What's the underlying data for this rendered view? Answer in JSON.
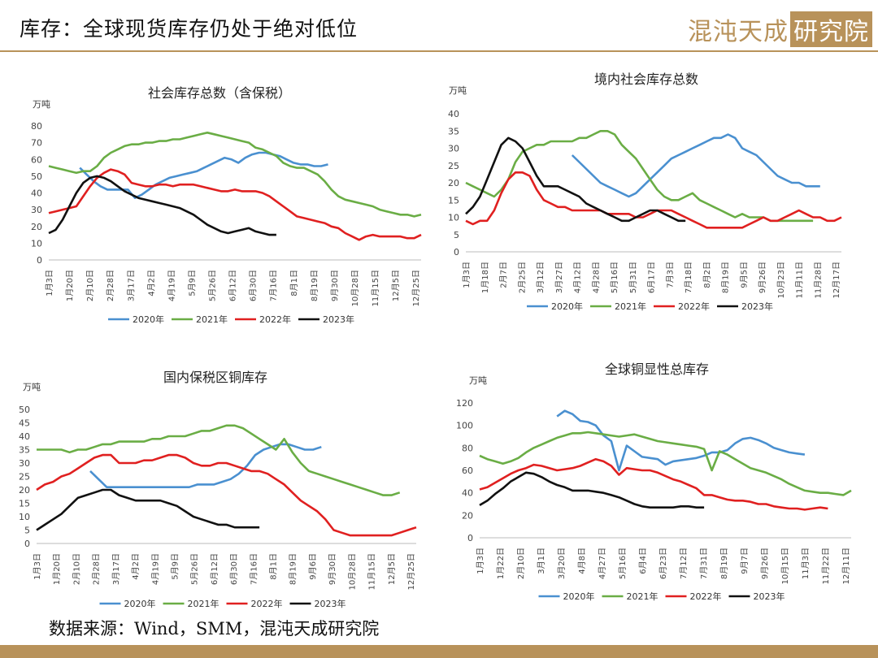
{
  "page": {
    "title": "库存：全球现货库存仍处于绝对低位",
    "logo_main": "混沌天成",
    "logo_box": "研究院",
    "source": "数据来源：Wind，SMM，混沌天成研究院"
  },
  "chart_data": [
    {
      "type": "line",
      "title": "社会库存总数（含保税）",
      "unit": "万吨",
      "ylim": [
        0,
        80
      ],
      "yticks": [
        0,
        10,
        20,
        30,
        40,
        50,
        60,
        70,
        80
      ],
      "x_ticks": [
        "1月3日",
        "1月20日",
        "2月10日",
        "2月28日",
        "3月17日",
        "4月2日",
        "4月19日",
        "5月9日",
        "5月26日",
        "6月12日",
        "6月30日",
        "7月16日",
        "8月1日",
        "8月19日",
        "9月30日",
        "10月28日",
        "11月15日",
        "12月5日",
        "12月25日"
      ],
      "legend_position": "bottom",
      "series": [
        {
          "name": "2020年",
          "color": "#4a90d0",
          "start": 4.5,
          "values": [
            55,
            51,
            47,
            44,
            42,
            42,
            42,
            42,
            37,
            39,
            42,
            45,
            47,
            49,
            50,
            51,
            52,
            53,
            55,
            57,
            59,
            61,
            60,
            58,
            61,
            63,
            64,
            64,
            63,
            62,
            60,
            58,
            57,
            57,
            56,
            56,
            57
          ]
        },
        {
          "name": "2021年",
          "color": "#6aad45",
          "start": 0,
          "values": [
            56,
            55,
            54,
            53,
            52,
            53,
            53,
            56,
            61,
            64,
            66,
            68,
            69,
            69,
            70,
            70,
            71,
            71,
            72,
            72,
            73,
            74,
            75,
            76,
            75,
            74,
            73,
            72,
            71,
            70,
            67,
            66,
            64,
            62,
            58,
            56,
            55,
            55,
            53,
            51,
            47,
            42,
            38,
            36,
            35,
            34,
            33,
            32,
            30,
            29,
            28,
            27,
            27,
            26,
            27
          ]
        },
        {
          "name": "2022年",
          "color": "#e02020",
          "start": 0,
          "values": [
            28,
            29,
            30,
            31,
            32,
            38,
            44,
            49,
            52,
            54,
            53,
            51,
            46,
            45,
            44,
            44,
            45,
            45,
            44,
            45,
            45,
            45,
            44,
            43,
            42,
            41,
            41,
            42,
            41,
            41,
            41,
            40,
            38,
            35,
            32,
            29,
            26,
            25,
            24,
            23,
            22,
            20,
            19,
            16,
            14,
            12,
            14,
            15,
            14,
            14,
            14,
            14,
            13,
            13,
            15
          ]
        },
        {
          "name": "2023年",
          "color": "#111111",
          "start": 0,
          "values": [
            16,
            18,
            24,
            32,
            40,
            46,
            49,
            50,
            49,
            47,
            44,
            41,
            39,
            37,
            36,
            35,
            34,
            33,
            32,
            31,
            29,
            27,
            24,
            21,
            19,
            17,
            16,
            17,
            18,
            19,
            17,
            16,
            15,
            15
          ]
        }
      ]
    },
    {
      "type": "line",
      "title": "境内社会库存总数",
      "unit": "万吨",
      "ylim": [
        0,
        40
      ],
      "yticks": [
        0,
        5,
        10,
        15,
        20,
        25,
        30,
        35,
        40
      ],
      "x_ticks": [
        "1月3日",
        "1月18日",
        "2月7日",
        "2月25日",
        "3月12日",
        "3月27日",
        "4月12日",
        "4月28日",
        "5月16日",
        "5月31日",
        "6月17日",
        "7月3日",
        "7月18日",
        "8月2日",
        "8月19日",
        "9月5日",
        "9月26日",
        "10月23日",
        "11月11日",
        "11月28日",
        "12月17日"
      ],
      "legend_position": "bottom",
      "series": [
        {
          "name": "2020年",
          "color": "#4a90d0",
          "start": 15,
          "values": [
            28,
            26,
            24,
            22,
            20,
            19,
            18,
            17,
            16,
            17,
            19,
            21,
            23,
            25,
            27,
            28,
            29,
            30,
            31,
            32,
            33,
            33,
            34,
            33,
            30,
            29,
            28,
            26,
            24,
            22,
            21,
            20,
            20,
            19,
            19,
            19
          ]
        },
        {
          "name": "2021年",
          "color": "#6aad45",
          "start": 0,
          "values": [
            20,
            19,
            18,
            17,
            16,
            18,
            21,
            26,
            29,
            30,
            31,
            31,
            32,
            32,
            32,
            32,
            33,
            33,
            34,
            35,
            35,
            34,
            31,
            29,
            27,
            24,
            21,
            18,
            16,
            15,
            15,
            16,
            17,
            15,
            14,
            13,
            12,
            11,
            10,
            11,
            10,
            10,
            10,
            9,
            9,
            9,
            9,
            9,
            9,
            9
          ]
        },
        {
          "name": "2022年",
          "color": "#e02020",
          "start": 0,
          "values": [
            9,
            8,
            9,
            9,
            12,
            17,
            21,
            23,
            23,
            22,
            18,
            15,
            14,
            13,
            13,
            12,
            12,
            12,
            12,
            12,
            11,
            11,
            11,
            11,
            10,
            10,
            11,
            12,
            12,
            12,
            11,
            10,
            9,
            8,
            7,
            7,
            7,
            7,
            7,
            7,
            8,
            9,
            10,
            9,
            9,
            10,
            11,
            12,
            11,
            10,
            10,
            9,
            9,
            10
          ]
        },
        {
          "name": "2023年",
          "color": "#111111",
          "start": 0,
          "values": [
            11,
            13,
            16,
            21,
            26,
            31,
            33,
            32,
            30,
            26,
            22,
            19,
            19,
            19,
            18,
            17,
            16,
            14,
            13,
            12,
            11,
            10,
            9,
            9,
            10,
            11,
            12,
            12,
            11,
            10,
            9,
            9
          ]
        }
      ]
    },
    {
      "type": "line",
      "title": "国内保税区铜库存",
      "unit": "万吨",
      "ylim": [
        0,
        50
      ],
      "yticks": [
        0,
        5,
        10,
        15,
        20,
        25,
        30,
        35,
        40,
        45,
        50
      ],
      "x_ticks": [
        "1月3日",
        "1月20日",
        "2月10日",
        "2月28日",
        "3月17日",
        "4月2日",
        "4月19日",
        "5月9日",
        "5月26日",
        "6月12日",
        "6月30日",
        "7月16日",
        "8月1日",
        "8月19日",
        "9月6日",
        "9月30日",
        "10月28日",
        "11月15日",
        "12月5日",
        "12月25日"
      ],
      "legend_position": "bottom",
      "series": [
        {
          "name": "2020年",
          "color": "#4a90d0",
          "start": 6.5,
          "values": [
            27,
            24,
            21,
            21,
            21,
            21,
            21,
            21,
            21,
            21,
            21,
            21,
            21,
            22,
            22,
            22,
            23,
            24,
            26,
            29,
            33,
            35,
            36,
            37,
            37,
            36,
            35,
            35,
            36
          ]
        },
        {
          "name": "2021年",
          "color": "#6aad45",
          "start": 0,
          "values": [
            35,
            35,
            35,
            35,
            34,
            35,
            35,
            36,
            37,
            37,
            38,
            38,
            38,
            38,
            39,
            39,
            40,
            40,
            40,
            41,
            42,
            42,
            43,
            44,
            44,
            43,
            41,
            39,
            37,
            35,
            39,
            34,
            30,
            27,
            26,
            25,
            24,
            23,
            22,
            21,
            20,
            19,
            18,
            18,
            19
          ]
        },
        {
          "name": "2022年",
          "color": "#e02020",
          "start": 0,
          "values": [
            20,
            22,
            23,
            25,
            26,
            28,
            30,
            32,
            33,
            33,
            30,
            30,
            30,
            31,
            31,
            32,
            33,
            33,
            32,
            30,
            29,
            29,
            30,
            30,
            29,
            28,
            27,
            27,
            26,
            24,
            22,
            19,
            16,
            14,
            12,
            9,
            5,
            4,
            3,
            3,
            3,
            3,
            3,
            3,
            4,
            5,
            6
          ]
        },
        {
          "name": "2023年",
          "color": "#111111",
          "start": 0,
          "values": [
            5,
            7,
            9,
            11,
            14,
            17,
            18,
            19,
            20,
            20,
            18,
            17,
            16,
            16,
            16,
            16,
            15,
            14,
            12,
            10,
            9,
            8,
            7,
            7,
            6,
            6,
            6,
            6
          ]
        }
      ]
    },
    {
      "type": "line",
      "title": "全球铜显性总库存",
      "unit": "万吨",
      "ylim": [
        0,
        120
      ],
      "yticks": [
        0,
        20,
        40,
        60,
        80,
        100,
        120
      ],
      "x_ticks": [
        "1月3日",
        "1月22日",
        "2月10日",
        "3月1日",
        "3月20日",
        "4月8日",
        "4月27日",
        "5月16日",
        "6月4日",
        "6月23日",
        "7月12日",
        "7月31日",
        "8月19日",
        "9月7日",
        "9月26日",
        "10月15日",
        "11月3日",
        "11月22日",
        "12月11日"
      ],
      "legend_position": "bottom",
      "series": [
        {
          "name": "2020年",
          "color": "#4a90d0",
          "start": 10,
          "values": [
            108,
            113,
            110,
            104,
            103,
            100,
            91,
            86,
            60,
            82,
            77,
            72,
            71,
            70,
            65,
            68,
            69,
            70,
            71,
            73,
            76,
            76,
            78,
            84,
            88,
            89,
            87,
            84,
            80,
            78,
            76,
            75,
            74
          ]
        },
        {
          "name": "2021年",
          "color": "#6aad45",
          "start": 0,
          "values": [
            73,
            70,
            68,
            66,
            68,
            71,
            76,
            80,
            83,
            86,
            89,
            91,
            93,
            93,
            94,
            93,
            92,
            91,
            90,
            91,
            92,
            90,
            88,
            86,
            85,
            84,
            83,
            82,
            81,
            79,
            60,
            77,
            74,
            70,
            66,
            62,
            60,
            58,
            55,
            52,
            48,
            45,
            42,
            41,
            40,
            40,
            39,
            38,
            42
          ]
        },
        {
          "name": "2022年",
          "color": "#e02020",
          "start": 0,
          "values": [
            43,
            45,
            49,
            53,
            57,
            60,
            62,
            65,
            64,
            62,
            60,
            61,
            62,
            64,
            67,
            70,
            68,
            64,
            56,
            62,
            61,
            60,
            60,
            58,
            55,
            52,
            50,
            47,
            44,
            38,
            38,
            36,
            34,
            33,
            33,
            32,
            30,
            30,
            28,
            27,
            26,
            26,
            25,
            26,
            27,
            26
          ]
        },
        {
          "name": "2023年",
          "color": "#111111",
          "start": 0,
          "values": [
            29,
            33,
            39,
            44,
            50,
            54,
            58,
            57,
            54,
            50,
            47,
            45,
            42,
            42,
            42,
            41,
            40,
            38,
            36,
            33,
            30,
            28,
            27,
            27,
            27,
            27,
            28,
            28,
            27,
            27
          ]
        }
      ]
    }
  ]
}
